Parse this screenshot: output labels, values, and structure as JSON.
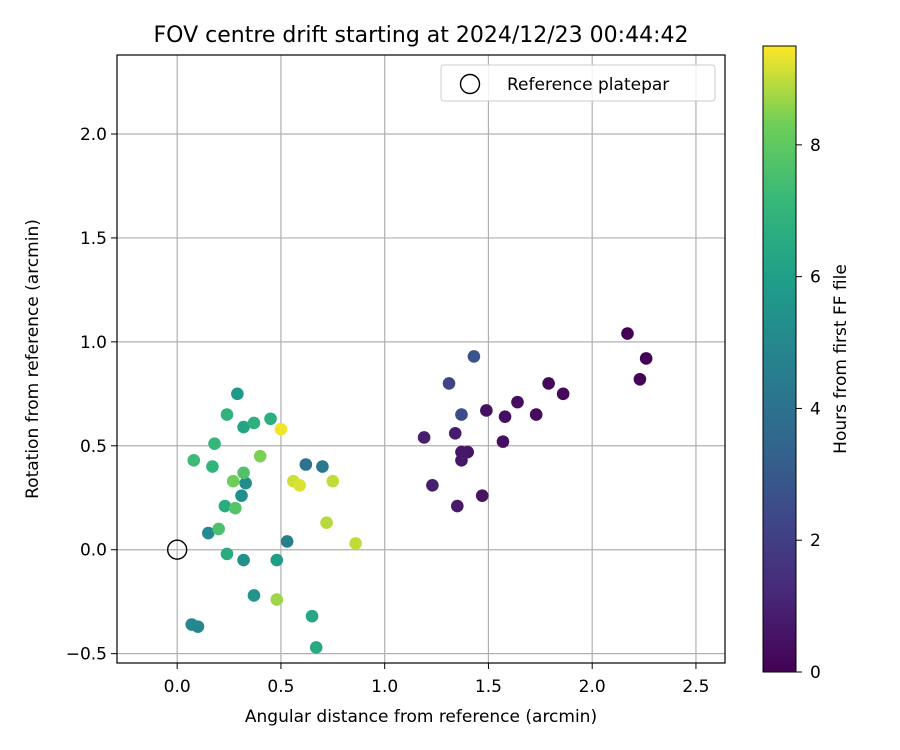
{
  "chart_data": {
    "type": "scatter",
    "title": "FOV centre drift starting at 2024/12/23 00:44:42",
    "xlabel": "Angular distance from reference (arcmin)",
    "ylabel": "Rotation from reference (arcmin)",
    "xlim": [
      -0.29,
      2.64
    ],
    "ylim": [
      -0.545,
      2.38
    ],
    "xticks": [
      0.0,
      0.5,
      1.0,
      1.5,
      2.0,
      2.5
    ],
    "xtick_labels": [
      "0.0",
      "0.5",
      "1.0",
      "1.5",
      "2.0",
      "2.5"
    ],
    "yticks": [
      -0.5,
      0.0,
      0.5,
      1.0,
      1.5,
      2.0
    ],
    "ytick_labels": [
      "−0.5",
      "0.0",
      "0.5",
      "1.0",
      "1.5",
      "2.0"
    ],
    "grid": true,
    "colormap": "viridis",
    "colorbar": {
      "label": "Hours from first FF file",
      "range": [
        0,
        9.5
      ],
      "ticks": [
        0,
        2,
        4,
        6,
        8
      ],
      "tick_labels": [
        "0",
        "2",
        "4",
        "6",
        "8"
      ]
    },
    "legend": {
      "placement": "top-right",
      "entries": [
        {
          "label": "Reference platepar",
          "marker": "open-circle"
        }
      ]
    },
    "reference_point": {
      "x": 0.0,
      "y": 0.0
    },
    "points": [
      {
        "x": 2.17,
        "y": 1.04,
        "hours": 0.0
      },
      {
        "x": 2.26,
        "y": 0.92,
        "hours": 0.05
      },
      {
        "x": 2.23,
        "y": 0.82,
        "hours": 0.1
      },
      {
        "x": 1.86,
        "y": 0.75,
        "hours": 0.2
      },
      {
        "x": 1.79,
        "y": 0.8,
        "hours": 0.25
      },
      {
        "x": 1.73,
        "y": 0.65,
        "hours": 0.3
      },
      {
        "x": 1.64,
        "y": 0.71,
        "hours": 0.35
      },
      {
        "x": 1.58,
        "y": 0.64,
        "hours": 0.4
      },
      {
        "x": 1.57,
        "y": 0.52,
        "hours": 0.45
      },
      {
        "x": 1.49,
        "y": 0.67,
        "hours": 0.5
      },
      {
        "x": 1.47,
        "y": 0.26,
        "hours": 0.55
      },
      {
        "x": 1.4,
        "y": 0.47,
        "hours": 0.6
      },
      {
        "x": 1.37,
        "y": 0.47,
        "hours": 0.65
      },
      {
        "x": 1.37,
        "y": 0.43,
        "hours": 0.7
      },
      {
        "x": 1.35,
        "y": 0.21,
        "hours": 0.75
      },
      {
        "x": 1.34,
        "y": 0.56,
        "hours": 0.8
      },
      {
        "x": 1.23,
        "y": 0.31,
        "hours": 0.85
      },
      {
        "x": 1.19,
        "y": 0.54,
        "hours": 0.9
      },
      {
        "x": 1.31,
        "y": 0.8,
        "hours": 2.2
      },
      {
        "x": 1.37,
        "y": 0.65,
        "hours": 2.5
      },
      {
        "x": 1.43,
        "y": 0.93,
        "hours": 2.8
      },
      {
        "x": 0.62,
        "y": 0.41,
        "hours": 4.0
      },
      {
        "x": 0.7,
        "y": 0.4,
        "hours": 4.3
      },
      {
        "x": 0.53,
        "y": 0.04,
        "hours": 4.6
      },
      {
        "x": 0.1,
        "y": -0.37,
        "hours": 4.9
      },
      {
        "x": 0.07,
        "y": -0.36,
        "hours": 5.0
      },
      {
        "x": 0.15,
        "y": 0.08,
        "hours": 5.1
      },
      {
        "x": 0.33,
        "y": 0.32,
        "hours": 5.2
      },
      {
        "x": 0.31,
        "y": 0.26,
        "hours": 5.3
      },
      {
        "x": 0.32,
        "y": -0.05,
        "hours": 5.4
      },
      {
        "x": 0.37,
        "y": -0.22,
        "hours": 5.5
      },
      {
        "x": 0.29,
        "y": 0.75,
        "hours": 5.7
      },
      {
        "x": 0.48,
        "y": -0.05,
        "hours": 6.0
      },
      {
        "x": 0.32,
        "y": 0.59,
        "hours": 6.2
      },
      {
        "x": 0.65,
        "y": -0.32,
        "hours": 6.3
      },
      {
        "x": 0.67,
        "y": -0.47,
        "hours": 6.4
      },
      {
        "x": 0.24,
        "y": -0.02,
        "hours": 6.6
      },
      {
        "x": 0.23,
        "y": 0.21,
        "hours": 6.6
      },
      {
        "x": 0.45,
        "y": 0.63,
        "hours": 6.7
      },
      {
        "x": 0.37,
        "y": 0.61,
        "hours": 6.8
      },
      {
        "x": 0.24,
        "y": 0.65,
        "hours": 6.9
      },
      {
        "x": 0.17,
        "y": 0.4,
        "hours": 7.0
      },
      {
        "x": 0.18,
        "y": 0.51,
        "hours": 7.1
      },
      {
        "x": 0.08,
        "y": 0.43,
        "hours": 7.3
      },
      {
        "x": 0.2,
        "y": 0.1,
        "hours": 7.6
      },
      {
        "x": 0.32,
        "y": 0.37,
        "hours": 7.7
      },
      {
        "x": 0.28,
        "y": 0.2,
        "hours": 7.8
      },
      {
        "x": 0.27,
        "y": 0.33,
        "hours": 8.3
      },
      {
        "x": 0.4,
        "y": 0.45,
        "hours": 8.4
      },
      {
        "x": 0.48,
        "y": -0.24,
        "hours": 8.7
      },
      {
        "x": 0.72,
        "y": 0.13,
        "hours": 8.9
      },
      {
        "x": 0.86,
        "y": 0.03,
        "hours": 9.0
      },
      {
        "x": 0.75,
        "y": 0.33,
        "hours": 9.0
      },
      {
        "x": 0.56,
        "y": 0.33,
        "hours": 9.1
      },
      {
        "x": 0.59,
        "y": 0.31,
        "hours": 9.2
      },
      {
        "x": 0.5,
        "y": 0.58,
        "hours": 9.4
      }
    ]
  }
}
